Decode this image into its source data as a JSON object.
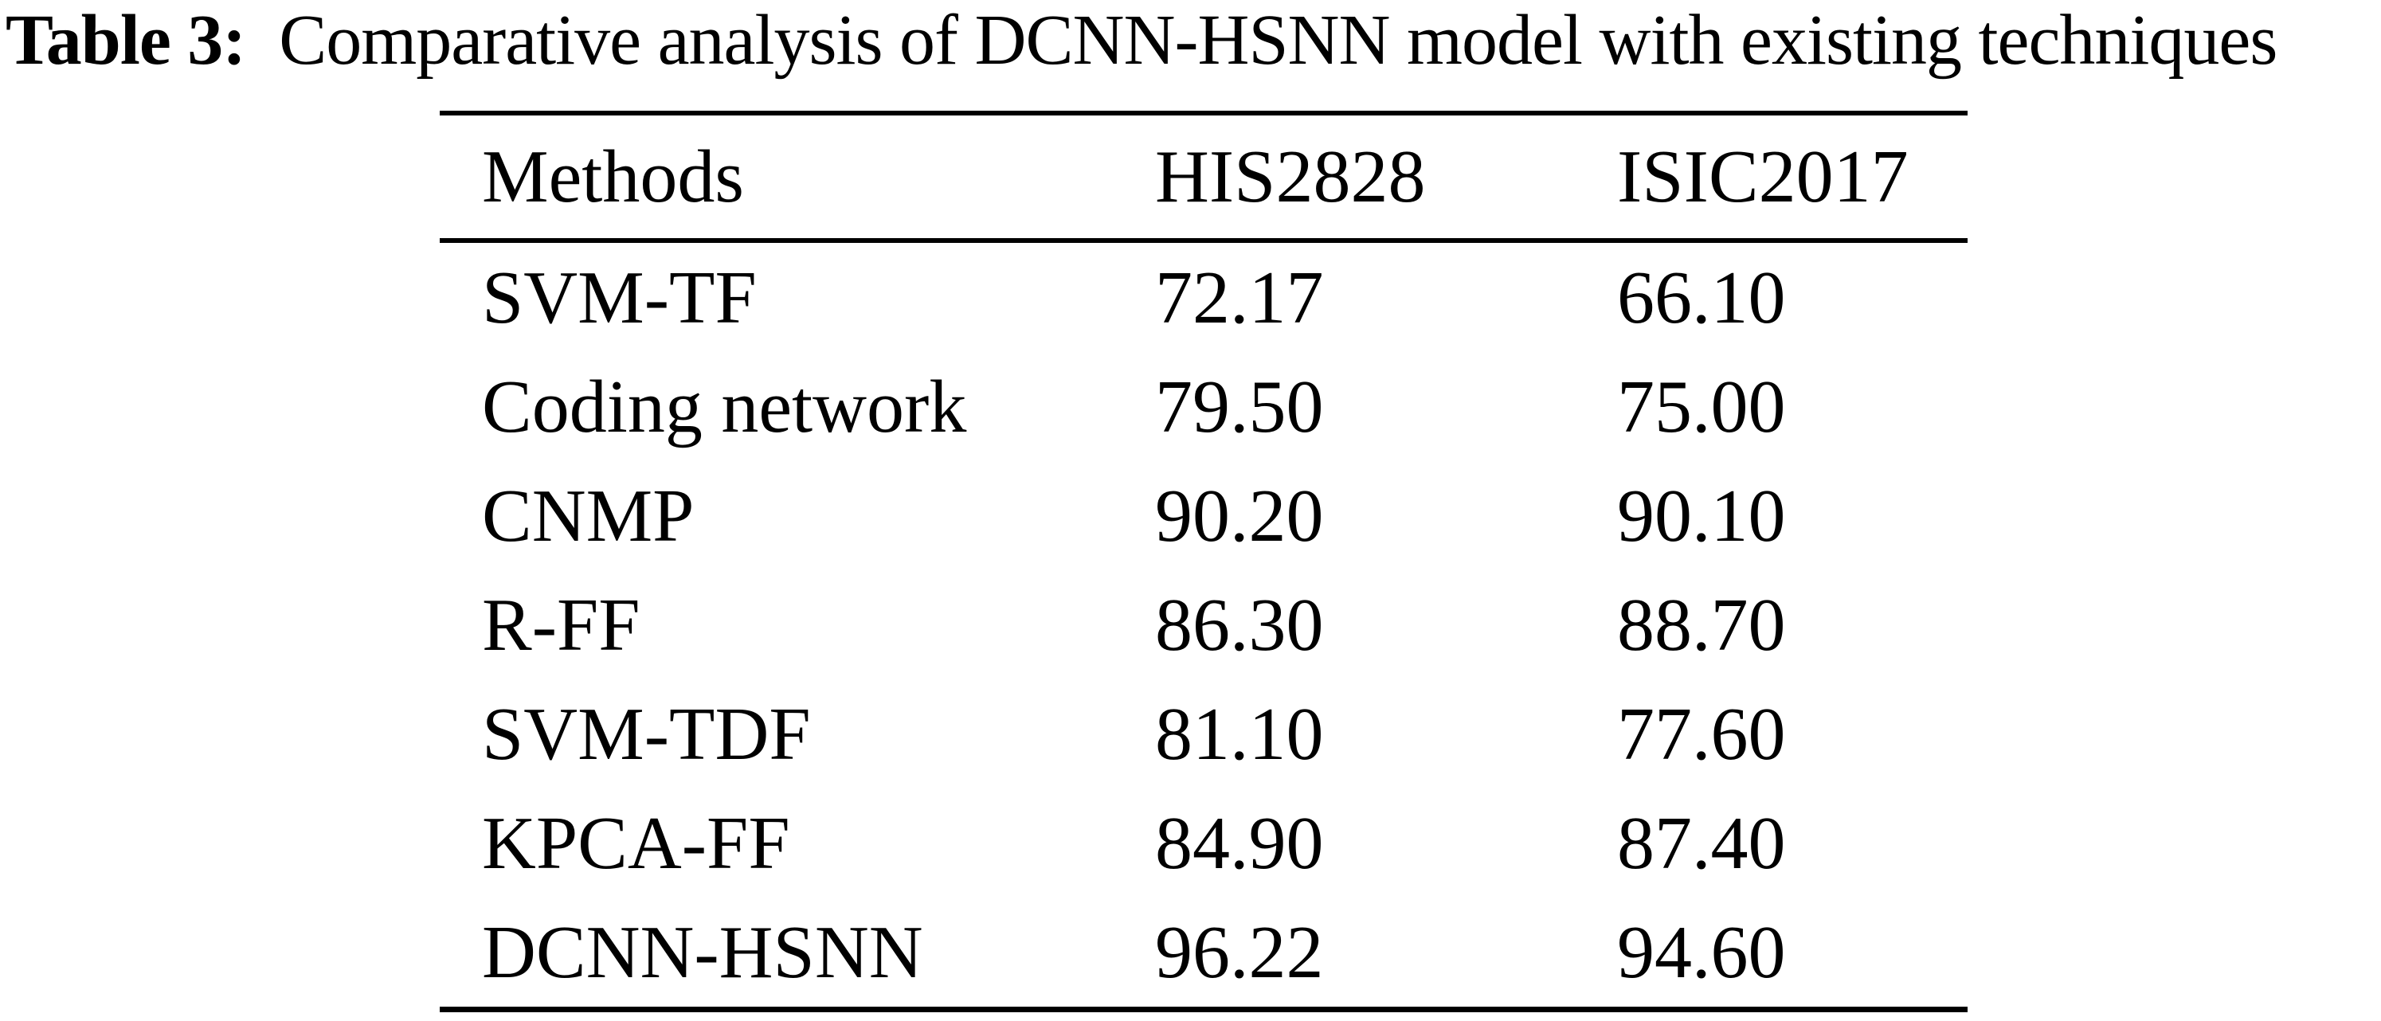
{
  "title": {
    "label": "Table 3:",
    "text": "Comparative analysis of DCNN-HSNN model with existing techniques"
  },
  "table": {
    "columns": [
      "Methods",
      "HIS2828",
      "ISIC2017"
    ],
    "rows": [
      {
        "method": "SVM-TF",
        "his2828": "72.17",
        "isic2017": "66.10"
      },
      {
        "method": "Coding network",
        "his2828": "79.50",
        "isic2017": "75.00"
      },
      {
        "method": "CNMP",
        "his2828": "90.20",
        "isic2017": "90.10"
      },
      {
        "method": "R-FF",
        "his2828": "86.30",
        "isic2017": "88.70"
      },
      {
        "method": "SVM-TDF",
        "his2828": "81.10",
        "isic2017": "77.60"
      },
      {
        "method": "KPCA-FF",
        "his2828": "84.90",
        "isic2017": "87.40"
      },
      {
        "method": "DCNN-HSNN",
        "his2828": "96.22",
        "isic2017": "94.60"
      }
    ]
  },
  "colors": {
    "text": "#000000",
    "background": "#ffffff"
  }
}
